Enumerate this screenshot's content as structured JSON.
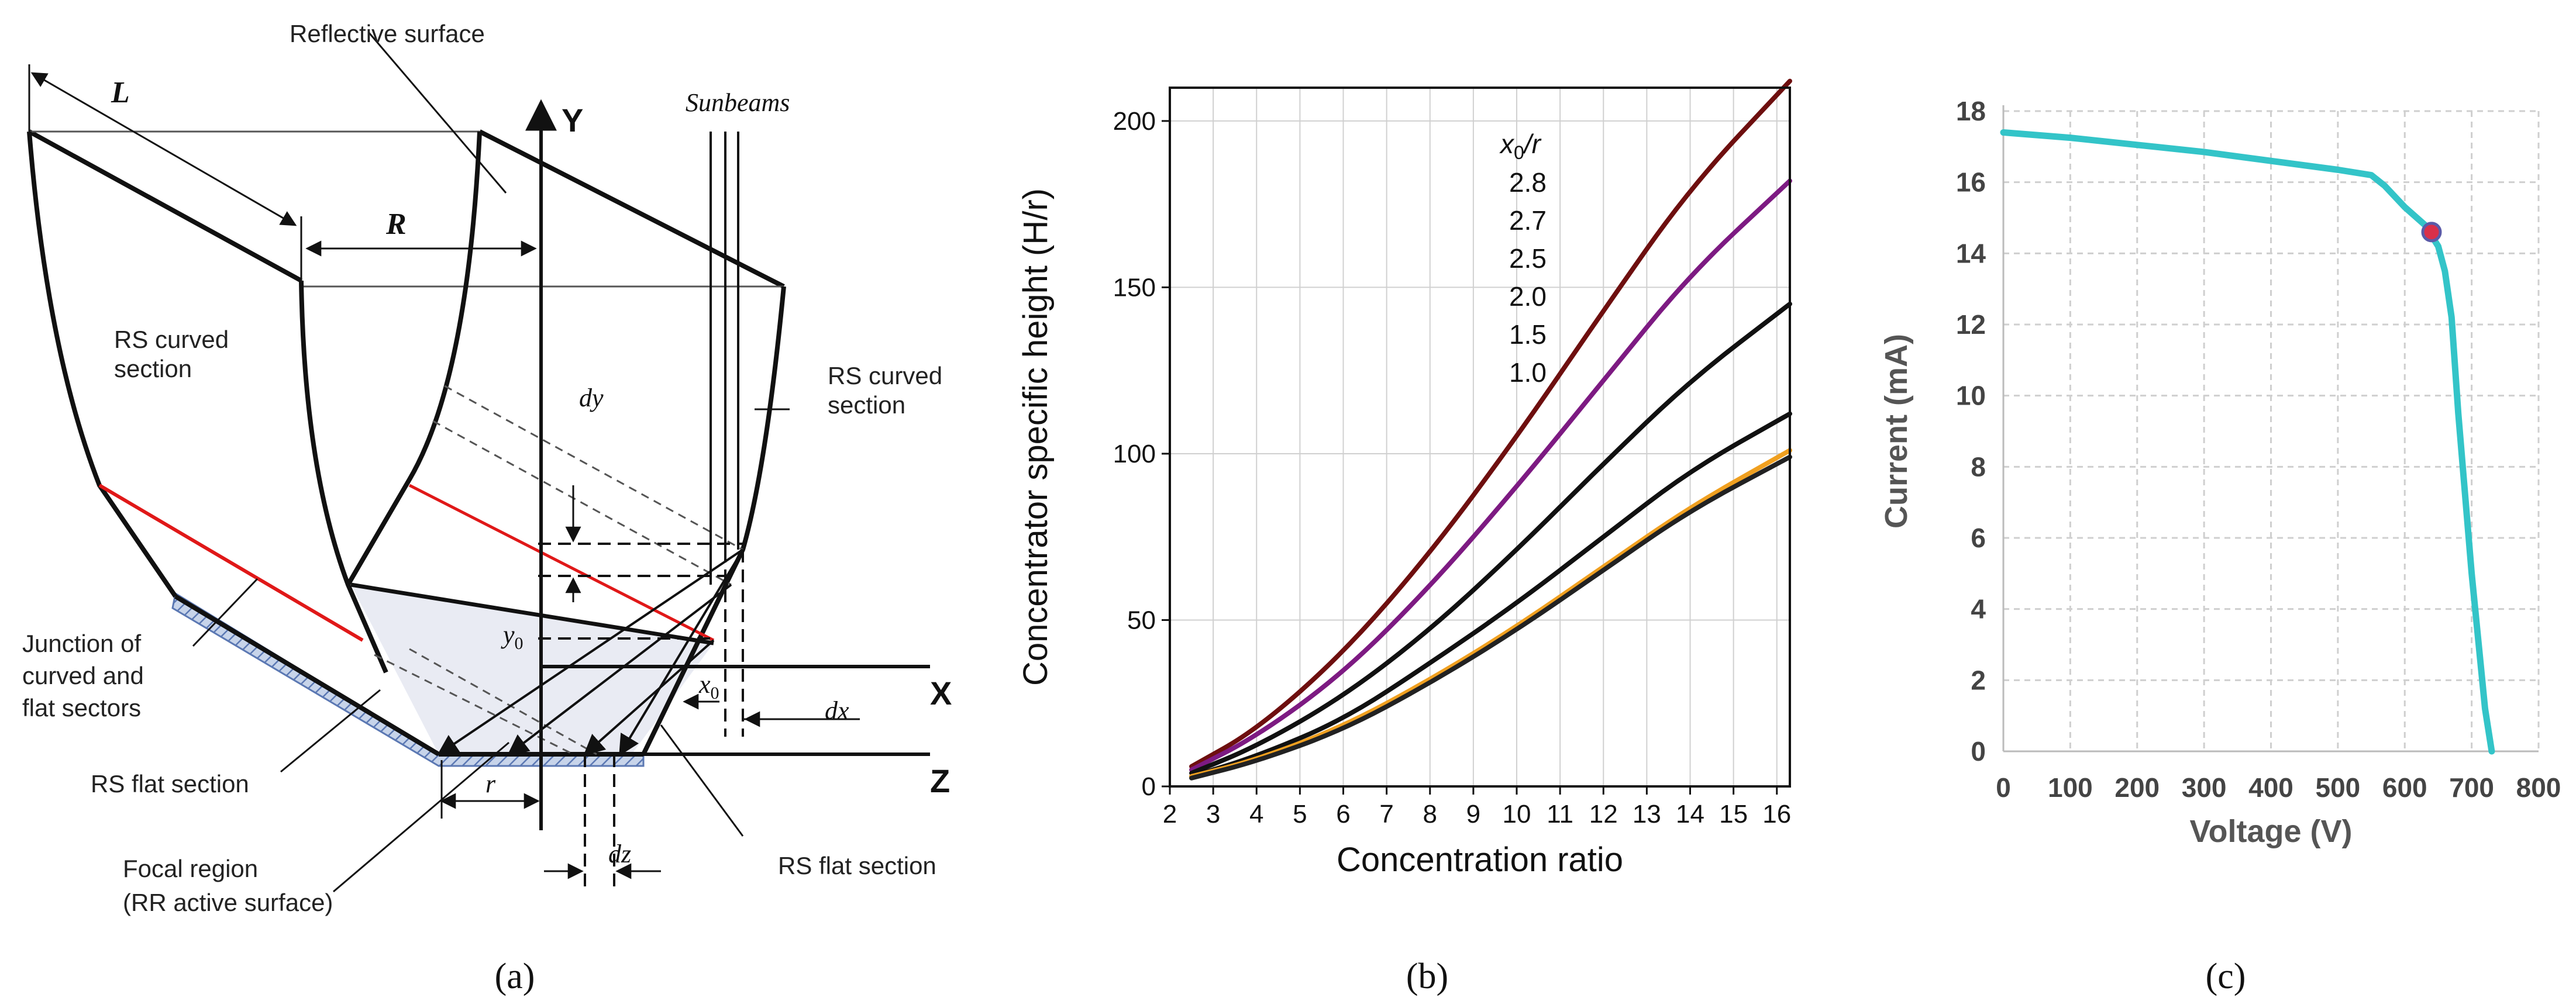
{
  "panel_a": {
    "caption": "(a)",
    "labels": {
      "reflective_surface": "Reflective surface",
      "L": "L",
      "R": "R",
      "Y": "Y",
      "X": "X",
      "Z": "Z",
      "sunbeams": "Sunbeams",
      "rs_curved_left_1": "RS curved",
      "rs_curved_left_2": "section",
      "rs_curved_right_1": "RS curved",
      "rs_curved_right_2": "section",
      "dy": "dy",
      "y0": "y",
      "y0_sub": "0",
      "x0": "x",
      "x0_sub": "0",
      "dx": "dx",
      "dz": "dz",
      "r": "r",
      "junction_1": "Junction of",
      "junction_2": "curved and",
      "junction_3": "flat sectors",
      "rs_flat_left": "RS flat section",
      "rs_flat_right": "RS flat section",
      "focal_1": "Focal region",
      "focal_2": "(RR active surface)"
    }
  },
  "panel_b": {
    "caption": "(b)",
    "legend_title": "x",
    "legend_title_sub": "0",
    "legend_title_rest": "/r",
    "legend_entries": [
      "2.8",
      "2.7",
      "2.5",
      "2.0",
      "1.5",
      "1.0"
    ]
  },
  "panel_c": {
    "caption": "(c)",
    "mpp_point": {
      "voltage": 640,
      "current": 14.6
    }
  },
  "chart_data": [
    {
      "type": "line",
      "title": "",
      "xlabel": "Concentration ratio",
      "ylabel": "Concentrator specific height (H/r)",
      "xlim": [
        2,
        16.3
      ],
      "ylim": [
        0,
        210
      ],
      "xticks": [
        2,
        3,
        4,
        5,
        6,
        7,
        8,
        9,
        10,
        11,
        12,
        13,
        14,
        15,
        16
      ],
      "yticks": [
        0,
        50,
        100,
        150,
        200
      ],
      "x": [
        2.5,
        4,
        6,
        8,
        10,
        12,
        14,
        16.3
      ],
      "series": [
        {
          "name": "2.8",
          "color": "#6e0f0f",
          "values": [
            6,
            17,
            40,
            70,
            105,
            143,
            180,
            212
          ]
        },
        {
          "name": "2.7",
          "color": "#7d1a82",
          "values": [
            5,
            15,
            34,
            60,
            90,
            122,
            154,
            182
          ]
        },
        {
          "name": "2.5",
          "color": "#111111",
          "values": [
            4,
            12,
            27,
            47,
            71,
            97,
            122,
            145
          ]
        },
        {
          "name": "2.0",
          "color": "#111111",
          "values": [
            3,
            9,
            20,
            37,
            55,
            75,
            95,
            112
          ]
        },
        {
          "name": "1.5",
          "color": "#f0a020",
          "values": [
            3,
            8,
            18,
            32,
            48,
            66,
            84,
            101
          ]
        },
        {
          "name": "1.0",
          "color": "#222222",
          "values": [
            2.5,
            7.5,
            17,
            31,
            47,
            65,
            83,
            99
          ]
        }
      ]
    },
    {
      "type": "line",
      "title": "",
      "xlabel": "Voltage (V)",
      "ylabel": "Current (mA)",
      "xlim": [
        0,
        800
      ],
      "ylim": [
        0,
        18
      ],
      "xticks": [
        0,
        100,
        200,
        300,
        400,
        500,
        600,
        700,
        800
      ],
      "yticks": [
        0,
        2,
        4,
        6,
        8,
        10,
        12,
        14,
        16,
        18
      ],
      "series": [
        {
          "name": "I-V curve",
          "color": "#33c4c8",
          "x": [
            0,
            100,
            200,
            300,
            400,
            500,
            550,
            570,
            600,
            630,
            650,
            660,
            670,
            680,
            700,
            720,
            730
          ],
          "values": [
            17.4,
            17.25,
            17.05,
            16.85,
            16.6,
            16.35,
            16.2,
            15.9,
            15.3,
            14.8,
            14.2,
            13.5,
            12.2,
            9.5,
            5.0,
            1.2,
            0
          ]
        }
      ]
    }
  ]
}
